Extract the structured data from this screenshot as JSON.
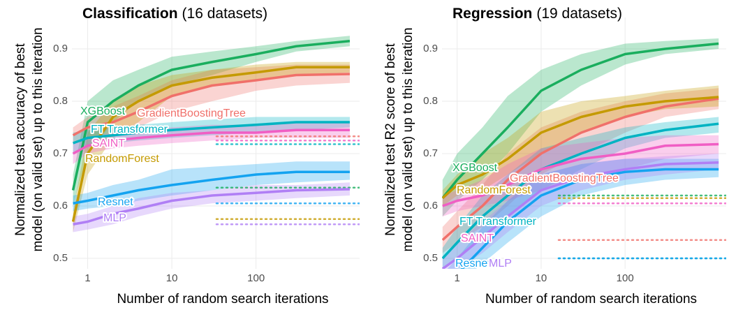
{
  "chart_data": [
    {
      "type": "line",
      "title": "Classification",
      "subtitle": "(16 datasets)",
      "xlabel": "Number of random search iterations",
      "ylabel": [
        "Normalized test accuracy of best",
        "model (on valid set) up to this iteration"
      ],
      "log_x": true,
      "grid": true,
      "xlim": [
        0.65,
        1700
      ],
      "xticks": [
        1,
        10,
        100
      ],
      "ylim": [
        0.48,
        0.96
      ],
      "yticks": [
        0.5,
        0.6,
        0.7,
        0.8,
        0.9
      ],
      "x": [
        0.67,
        1,
        2,
        4,
        10,
        30,
        100,
        300,
        1300
      ],
      "series": [
        {
          "name": "XGBoost",
          "color": "#1aae5e",
          "values": [
            0.63,
            0.76,
            0.8,
            0.83,
            0.86,
            0.875,
            0.89,
            0.905,
            0.915
          ],
          "lower": [
            0.6,
            0.7,
            0.76,
            0.8,
            0.83,
            0.85,
            0.875,
            0.895,
            0.905
          ],
          "upper": [
            0.66,
            0.8,
            0.84,
            0.86,
            0.885,
            0.895,
            0.905,
            0.915,
            0.925
          ],
          "default": 0.635
        },
        {
          "name": "GradientBoostingTree",
          "color": "#f0706a",
          "values": [
            0.735,
            0.75,
            0.76,
            0.78,
            0.81,
            0.83,
            0.84,
            0.85,
            0.852
          ],
          "lower": [
            0.72,
            0.73,
            0.74,
            0.75,
            0.78,
            0.8,
            0.82,
            0.83,
            0.835
          ],
          "upper": [
            0.75,
            0.77,
            0.79,
            0.81,
            0.84,
            0.86,
            0.865,
            0.87,
            0.87
          ],
          "default": 0.733
        },
        {
          "name": "RandomForest",
          "color": "#c49a00",
          "values": [
            0.57,
            0.7,
            0.77,
            0.8,
            0.83,
            0.845,
            0.855,
            0.865,
            0.865
          ],
          "lower": [
            0.55,
            0.66,
            0.73,
            0.76,
            0.81,
            0.83,
            0.84,
            0.85,
            0.855
          ],
          "upper": [
            0.59,
            0.74,
            0.8,
            0.83,
            0.85,
            0.86,
            0.87,
            0.875,
            0.875
          ],
          "default": 0.575
        },
        {
          "name": "FT Transformer",
          "color": "#00b3c2",
          "values": [
            0.72,
            0.73,
            0.735,
            0.74,
            0.745,
            0.75,
            0.755,
            0.76,
            0.76
          ],
          "lower": [
            0.7,
            0.715,
            0.72,
            0.725,
            0.73,
            0.735,
            0.74,
            0.745,
            0.75
          ],
          "upper": [
            0.74,
            0.745,
            0.75,
            0.755,
            0.76,
            0.765,
            0.77,
            0.77,
            0.77
          ],
          "default": 0.718
        },
        {
          "name": "SAINT",
          "color": "#f05ec4",
          "values": [
            0.7,
            0.715,
            0.725,
            0.73,
            0.735,
            0.74,
            0.74,
            0.745,
            0.745
          ],
          "lower": [
            0.68,
            0.7,
            0.71,
            0.715,
            0.72,
            0.725,
            0.73,
            0.73,
            0.73
          ],
          "upper": [
            0.72,
            0.73,
            0.74,
            0.745,
            0.75,
            0.755,
            0.755,
            0.76,
            0.76
          ],
          "default": 0.725
        },
        {
          "name": "Resnet",
          "color": "#14a3f0",
          "values": [
            0.605,
            0.61,
            0.62,
            0.63,
            0.64,
            0.65,
            0.66,
            0.665,
            0.665
          ],
          "lower": [
            0.59,
            0.595,
            0.6,
            0.61,
            0.62,
            0.63,
            0.64,
            0.645,
            0.65
          ],
          "upper": [
            0.62,
            0.625,
            0.64,
            0.65,
            0.67,
            0.675,
            0.68,
            0.685,
            0.685
          ],
          "default": 0.605
        },
        {
          "name": "MLP",
          "color": "#b07ff5",
          "values": [
            0.565,
            0.57,
            0.585,
            0.595,
            0.61,
            0.62,
            0.625,
            0.63,
            0.632
          ],
          "lower": [
            0.55,
            0.555,
            0.565,
            0.58,
            0.595,
            0.605,
            0.61,
            0.615,
            0.62
          ],
          "upper": [
            0.58,
            0.585,
            0.6,
            0.615,
            0.625,
            0.63,
            0.64,
            0.64,
            0.645
          ],
          "default": 0.565
        }
      ]
    },
    {
      "type": "line",
      "title": "Regression",
      "subtitle": "(19 datasets)",
      "xlabel": "Number of random search iterations",
      "ylabel": [
        "Normalized test R2 score of best",
        "model (on valid set) up to this iteration"
      ],
      "log_x": true,
      "grid": true,
      "xlim": [
        0.66,
        1600
      ],
      "xticks": [
        1,
        10,
        100
      ],
      "ylim": [
        0.48,
        0.96
      ],
      "yticks": [
        0.5,
        0.6,
        0.7,
        0.8,
        0.9
      ],
      "x": [
        0.67,
        1,
        2,
        4,
        10,
        30,
        100,
        300,
        1300
      ],
      "series": [
        {
          "name": "XGBoost",
          "color": "#1aae5e",
          "values": [
            0.615,
            0.65,
            0.7,
            0.75,
            0.82,
            0.86,
            0.89,
            0.9,
            0.91
          ],
          "lower": [
            0.58,
            0.61,
            0.65,
            0.7,
            0.78,
            0.83,
            0.87,
            0.89,
            0.9
          ],
          "upper": [
            0.65,
            0.7,
            0.75,
            0.81,
            0.86,
            0.89,
            0.91,
            0.915,
            0.92
          ],
          "default": 0.62
        },
        {
          "name": "GradientBoostingTree",
          "color": "#f0706a",
          "values": [
            0.535,
            0.56,
            0.6,
            0.65,
            0.7,
            0.74,
            0.77,
            0.79,
            0.805
          ],
          "lower": [
            0.51,
            0.53,
            0.56,
            0.6,
            0.66,
            0.7,
            0.74,
            0.77,
            0.785
          ],
          "upper": [
            0.56,
            0.59,
            0.64,
            0.7,
            0.75,
            0.78,
            0.8,
            0.815,
            0.825
          ],
          "default": 0.535
        },
        {
          "name": "RandomForest",
          "color": "#c49a00",
          "values": [
            0.615,
            0.64,
            0.66,
            0.69,
            0.74,
            0.77,
            0.79,
            0.8,
            0.808
          ],
          "lower": [
            0.6,
            0.62,
            0.63,
            0.66,
            0.7,
            0.74,
            0.77,
            0.785,
            0.79
          ],
          "upper": [
            0.63,
            0.66,
            0.7,
            0.73,
            0.78,
            0.8,
            0.81,
            0.82,
            0.83
          ],
          "default": 0.615
        },
        {
          "name": "FT Transformer",
          "color": "#00b3c2",
          "values": [
            0.5,
            0.53,
            0.58,
            0.62,
            0.67,
            0.7,
            0.73,
            0.745,
            0.757
          ],
          "lower": [
            0.48,
            0.5,
            0.54,
            0.58,
            0.63,
            0.67,
            0.71,
            0.73,
            0.74
          ],
          "upper": [
            0.52,
            0.56,
            0.62,
            0.66,
            0.71,
            0.73,
            0.75,
            0.76,
            0.77
          ],
          "default": 0.5
        },
        {
          "name": "SAINT",
          "color": "#f05ec4",
          "values": [
            0.6,
            0.61,
            0.62,
            0.64,
            0.67,
            0.69,
            0.7,
            0.715,
            0.718
          ],
          "lower": [
            0.58,
            0.59,
            0.6,
            0.61,
            0.63,
            0.65,
            0.67,
            0.69,
            0.7
          ],
          "upper": [
            0.62,
            0.63,
            0.65,
            0.68,
            0.71,
            0.72,
            0.73,
            0.735,
            0.735
          ],
          "default": 0.605
        },
        {
          "name": "Resnet",
          "color": "#14a3f0",
          "values": [
            0.45,
            0.47,
            0.52,
            0.57,
            0.62,
            0.65,
            0.665,
            0.67,
            0.67
          ],
          "lower": [
            0.43,
            0.45,
            0.49,
            0.53,
            0.58,
            0.62,
            0.64,
            0.65,
            0.655
          ],
          "upper": [
            0.47,
            0.5,
            0.56,
            0.61,
            0.66,
            0.68,
            0.69,
            0.69,
            0.69
          ],
          "default": 0.5
        },
        {
          "name": "MLP",
          "color": "#b07ff5",
          "values": [
            0.48,
            0.5,
            0.54,
            0.58,
            0.63,
            0.655,
            0.67,
            0.68,
            0.683
          ],
          "lower": [
            0.46,
            0.48,
            0.51,
            0.55,
            0.6,
            0.63,
            0.65,
            0.66,
            0.67
          ],
          "upper": [
            0.5,
            0.53,
            0.57,
            0.61,
            0.66,
            0.68,
            0.69,
            0.695,
            0.7
          ]
        }
      ]
    }
  ]
}
